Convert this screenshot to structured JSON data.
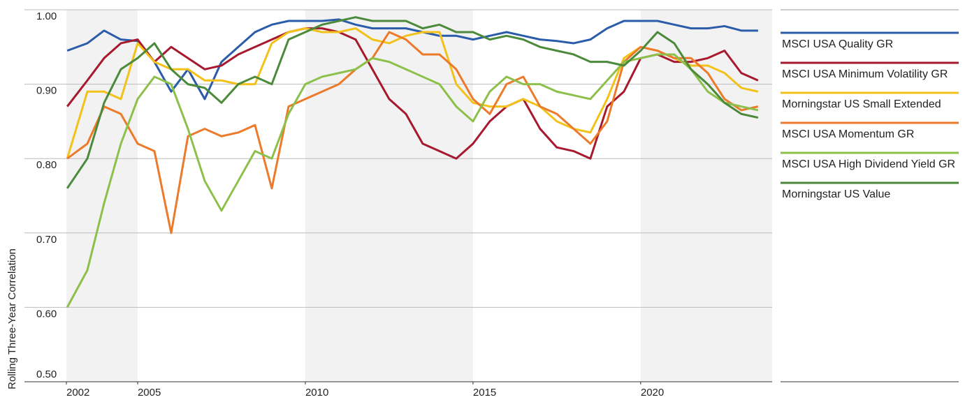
{
  "chart_data": {
    "type": "line",
    "y_axis_label": "Rolling Three-Year Correlation",
    "x": [
      2002.9,
      2003.5,
      2004,
      2004.5,
      2005,
      2005.5,
      2006,
      2006.5,
      2007,
      2007.5,
      2008,
      2008.5,
      2009,
      2009.5,
      2010,
      2010.5,
      2011,
      2011.5,
      2012,
      2012.5,
      2013,
      2013.5,
      2014,
      2014.5,
      2015,
      2015.5,
      2016,
      2016.5,
      2017,
      2017.5,
      2018,
      2018.5,
      2019,
      2019.5,
      2020,
      2020.5,
      2021,
      2021.5,
      2022,
      2022.5,
      2023,
      2023.5
    ],
    "series": [
      {
        "name": "MSCI USA Quality GR",
        "color": "#2a5caa",
        "values": [
          0.945,
          0.955,
          0.972,
          0.96,
          0.958,
          0.93,
          0.89,
          0.92,
          0.88,
          0.93,
          0.95,
          0.97,
          0.98,
          0.985,
          0.985,
          0.985,
          0.987,
          0.98,
          0.975,
          0.975,
          0.975,
          0.97,
          0.965,
          0.965,
          0.96,
          0.965,
          0.97,
          0.965,
          0.96,
          0.958,
          0.955,
          0.96,
          0.975,
          0.985,
          0.985,
          0.985,
          0.98,
          0.975,
          0.975,
          0.978,
          0.972,
          0.972
        ]
      },
      {
        "name": "MSCI USA Minimum Volatility GR",
        "color": "#a6192e",
        "values": [
          0.87,
          0.905,
          0.935,
          0.955,
          0.96,
          0.93,
          0.95,
          0.935,
          0.92,
          0.925,
          0.94,
          0.95,
          0.96,
          0.97,
          0.975,
          0.975,
          0.97,
          0.96,
          0.92,
          0.88,
          0.86,
          0.82,
          0.81,
          0.8,
          0.82,
          0.85,
          0.87,
          0.88,
          0.84,
          0.815,
          0.81,
          0.8,
          0.87,
          0.89,
          0.935,
          0.94,
          0.93,
          0.93,
          0.935,
          0.945,
          0.915,
          0.905
        ]
      },
      {
        "name": "Morningstar US Small Extended",
        "color": "#f2c21b",
        "values": [
          0.8,
          0.89,
          0.89,
          0.88,
          0.955,
          0.93,
          0.92,
          0.92,
          0.905,
          0.905,
          0.9,
          0.9,
          0.955,
          0.97,
          0.975,
          0.97,
          0.97,
          0.975,
          0.96,
          0.955,
          0.965,
          0.97,
          0.97,
          0.9,
          0.875,
          0.87,
          0.87,
          0.88,
          0.87,
          0.85,
          0.84,
          0.835,
          0.88,
          0.935,
          0.95,
          0.945,
          0.935,
          0.925,
          0.925,
          0.915,
          0.895,
          0.89
        ]
      },
      {
        "name": "MSCI USA Momentum GR",
        "color": "#ec7a2a",
        "values": [
          0.8,
          0.82,
          0.87,
          0.86,
          0.82,
          0.81,
          0.7,
          0.83,
          0.84,
          0.83,
          0.835,
          0.845,
          0.76,
          0.87,
          0.88,
          0.89,
          0.9,
          0.92,
          0.935,
          0.97,
          0.96,
          0.94,
          0.94,
          0.92,
          0.88,
          0.86,
          0.9,
          0.91,
          0.87,
          0.86,
          0.84,
          0.82,
          0.85,
          0.93,
          0.95,
          0.945,
          0.935,
          0.935,
          0.915,
          0.88,
          0.865,
          0.87
        ]
      },
      {
        "name": "MSCI USA High Dividend Yield GR",
        "color": "#8cc04a",
        "values": [
          0.6,
          0.65,
          0.74,
          0.82,
          0.88,
          0.91,
          0.9,
          0.84,
          0.77,
          0.73,
          0.77,
          0.81,
          0.8,
          0.86,
          0.9,
          0.91,
          0.915,
          0.92,
          0.935,
          0.93,
          0.92,
          0.91,
          0.9,
          0.87,
          0.85,
          0.89,
          0.91,
          0.9,
          0.9,
          0.89,
          0.885,
          0.88,
          0.905,
          0.93,
          0.935,
          0.94,
          0.94,
          0.92,
          0.89,
          0.875,
          0.87,
          0.865
        ]
      },
      {
        "name": "Morningstar US Value",
        "color": "#4a8a3a",
        "values": [
          0.76,
          0.8,
          0.875,
          0.92,
          0.935,
          0.955,
          0.92,
          0.9,
          0.895,
          0.875,
          0.9,
          0.91,
          0.9,
          0.96,
          0.97,
          0.98,
          0.985,
          0.99,
          0.985,
          0.985,
          0.985,
          0.975,
          0.98,
          0.97,
          0.97,
          0.96,
          0.965,
          0.96,
          0.95,
          0.945,
          0.94,
          0.93,
          0.93,
          0.925,
          0.945,
          0.97,
          0.955,
          0.92,
          0.9,
          0.875,
          0.86,
          0.855
        ]
      }
    ],
    "xlim": [
      2002.875,
      2023.92
    ],
    "xticks": [
      {
        "value": 2002.875,
        "label": "2002"
      },
      2005,
      2010,
      2015,
      2020
    ],
    "shaded_bands": [
      [
        2002.875,
        2005
      ],
      [
        2010,
        2015
      ],
      [
        2020,
        2023.92
      ]
    ],
    "ylim": [
      0.5,
      1.0
    ],
    "yticks": [
      {
        "value": 0.5,
        "label": "0.50"
      },
      {
        "value": 0.6,
        "label": "0.60"
      },
      {
        "value": 0.7,
        "label": "0.70"
      },
      {
        "value": 0.8,
        "label": "0.80"
      },
      {
        "value": 0.9,
        "label": "0.90"
      },
      {
        "value": 1.0,
        "label": "1.00"
      }
    ],
    "grid": true,
    "legend": "right"
  }
}
